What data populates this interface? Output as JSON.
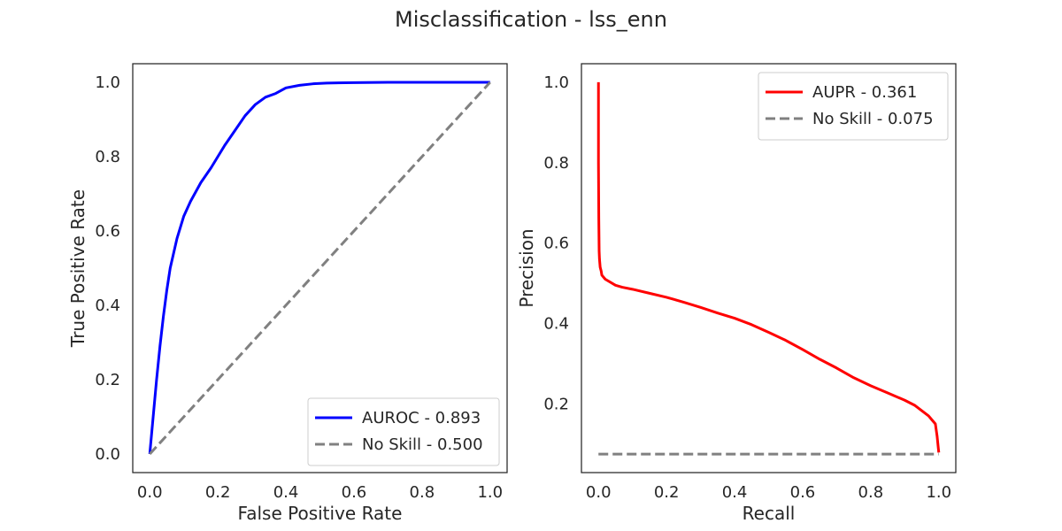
{
  "figure_title": "Misclassification - lss_enn",
  "chart_data": [
    {
      "type": "line",
      "xlabel": "False Positive Rate",
      "ylabel": "True Positive Rate",
      "xlim": [
        -0.05,
        1.05
      ],
      "ylim": [
        -0.05,
        1.05
      ],
      "xticks": [
        "0.0",
        "0.2",
        "0.4",
        "0.6",
        "0.8",
        "1.0"
      ],
      "yticks": [
        "0.0",
        "0.2",
        "0.4",
        "0.6",
        "0.8",
        "1.0"
      ],
      "legend_position": "lower right",
      "grid": false,
      "series": [
        {
          "name": "AUROC - 0.893",
          "color": "#0000ff",
          "style": "solid",
          "x": [
            0.0,
            0.01,
            0.02,
            0.03,
            0.04,
            0.05,
            0.06,
            0.08,
            0.1,
            0.12,
            0.15,
            0.18,
            0.2,
            0.22,
            0.25,
            0.28,
            0.31,
            0.34,
            0.37,
            0.4,
            0.44,
            0.48,
            0.52,
            0.6,
            0.7,
            0.8,
            0.9,
            1.0
          ],
          "y": [
            0.0,
            0.1,
            0.2,
            0.29,
            0.37,
            0.44,
            0.5,
            0.58,
            0.64,
            0.68,
            0.73,
            0.77,
            0.8,
            0.83,
            0.87,
            0.91,
            0.94,
            0.96,
            0.97,
            0.985,
            0.992,
            0.996,
            0.998,
            0.999,
            1.0,
            1.0,
            1.0,
            1.0
          ]
        },
        {
          "name": "No Skill - 0.500",
          "color": "#808080",
          "style": "dashed",
          "x": [
            0.0,
            1.0
          ],
          "y": [
            0.0,
            1.0
          ]
        }
      ]
    },
    {
      "type": "line",
      "xlabel": "Recall",
      "ylabel": "Precision",
      "xlim": [
        -0.05,
        1.05
      ],
      "ylim": [
        0.029,
        1.046
      ],
      "xticks": [
        "0.0",
        "0.2",
        "0.4",
        "0.6",
        "0.8",
        "1.0"
      ],
      "yticks": [
        "0.2",
        "0.4",
        "0.6",
        "0.8",
        "1.0"
      ],
      "legend_position": "upper right",
      "grid": false,
      "series": [
        {
          "name": "AUPR - 0.361",
          "color": "#ff0000",
          "style": "solid",
          "x": [
            0.0,
            0.0,
            0.001,
            0.002,
            0.003,
            0.004,
            0.005,
            0.008,
            0.01,
            0.02,
            0.05,
            0.07,
            0.1,
            0.15,
            0.2,
            0.25,
            0.3,
            0.35,
            0.4,
            0.45,
            0.5,
            0.55,
            0.6,
            0.65,
            0.7,
            0.75,
            0.8,
            0.85,
            0.9,
            0.93,
            0.95,
            0.97,
            0.98,
            0.99,
            0.995,
            0.998,
            1.0
          ],
          "y": [
            1.0,
            0.8,
            0.66,
            0.58,
            0.56,
            0.55,
            0.54,
            0.53,
            0.52,
            0.51,
            0.495,
            0.49,
            0.485,
            0.475,
            0.465,
            0.453,
            0.44,
            0.426,
            0.413,
            0.397,
            0.378,
            0.358,
            0.335,
            0.311,
            0.289,
            0.265,
            0.245,
            0.227,
            0.209,
            0.196,
            0.183,
            0.17,
            0.16,
            0.15,
            0.12,
            0.095,
            0.079
          ]
        },
        {
          "name": "No Skill - 0.075",
          "color": "#808080",
          "style": "dashed",
          "x": [
            0.0,
            1.0
          ],
          "y": [
            0.075,
            0.075
          ]
        }
      ]
    }
  ]
}
